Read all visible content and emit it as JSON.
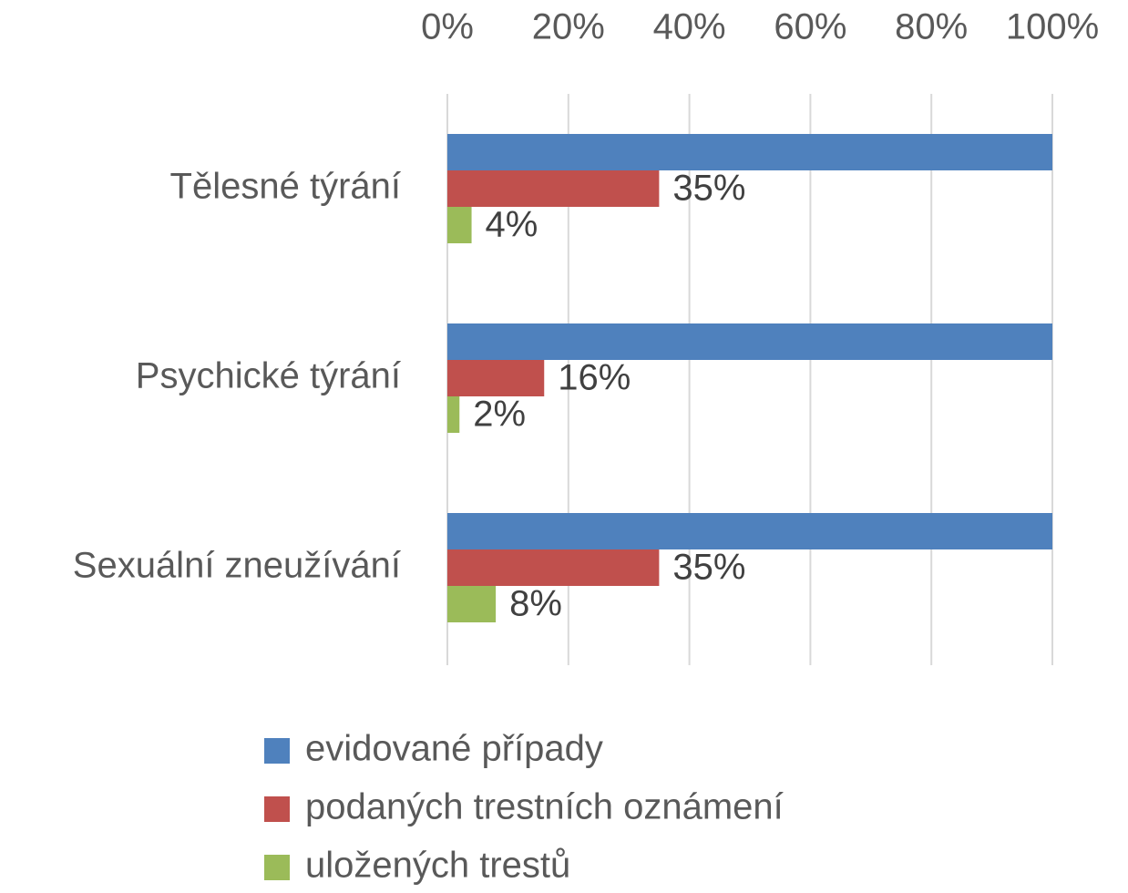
{
  "chart_data": {
    "type": "bar",
    "orientation": "horizontal",
    "categories": [
      "Tělesné týrání",
      "Psychické týrání",
      "Sexuální zneužívání"
    ],
    "series": [
      {
        "name": "evidované případy",
        "color": "#4f81bd",
        "values": [
          100,
          100,
          100
        ]
      },
      {
        "name": "podaných trestních oznámení",
        "color": "#c0504d",
        "values": [
          35,
          16,
          35
        ],
        "value_labels": [
          "35%",
          "16%",
          "35%"
        ]
      },
      {
        "name": "uložených trestů",
        "color": "#9bbb59",
        "values": [
          4,
          2,
          8
        ],
        "value_labels": [
          "4%",
          "2%",
          "8%"
        ]
      }
    ],
    "xlim": [
      0,
      100
    ],
    "xticks": [
      {
        "value": 0,
        "label": "0%"
      },
      {
        "value": 20,
        "label": "20%"
      },
      {
        "value": 40,
        "label": "40%"
      },
      {
        "value": 60,
        "label": "60%"
      },
      {
        "value": 80,
        "label": "80%"
      },
      {
        "value": 100,
        "label": "100%"
      }
    ],
    "grid": true,
    "legend": "bottom"
  }
}
